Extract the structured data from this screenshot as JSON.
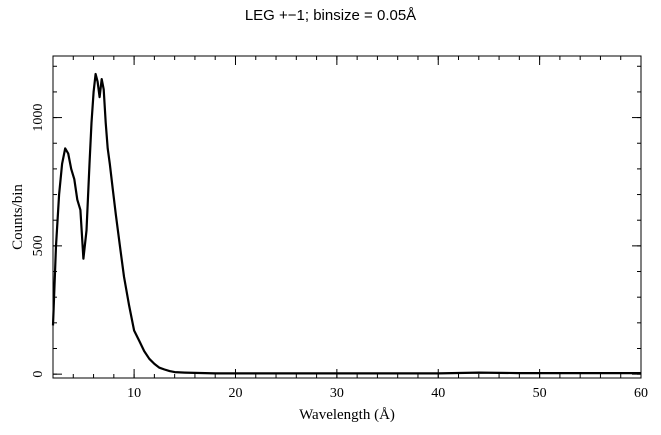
{
  "chart_data": {
    "type": "line",
    "title": "LEG +−1; binsize = 0.05Å",
    "xlabel": "Wavelength (Å)",
    "ylabel": "Counts/bin",
    "xlim": [
      2,
      60
    ],
    "ylim": [
      -15,
      1240
    ],
    "xticks": [
      10,
      20,
      30,
      40,
      50,
      60
    ],
    "yticks": [
      0,
      500,
      1000
    ],
    "grid": false,
    "series": [
      {
        "x": [
          2,
          2.3,
          2.6,
          2.9,
          3.2,
          3.5,
          3.8,
          4.1,
          4.4,
          4.7,
          5.0,
          5.3,
          5.6,
          5.8,
          6.0,
          6.2,
          6.4,
          6.6,
          6.8,
          7.0,
          7.2,
          7.4,
          7.6,
          7.9,
          8.2,
          8.6,
          9.0,
          9.5,
          10,
          10.5,
          11,
          11.5,
          12,
          12.5,
          13,
          13.5,
          14,
          15,
          16,
          17,
          18,
          20,
          25,
          30,
          35,
          40,
          44,
          48,
          52,
          56,
          60
        ],
        "y": [
          190,
          500,
          700,
          820,
          880,
          860,
          800,
          760,
          680,
          640,
          450,
          560,
          820,
          980,
          1100,
          1170,
          1140,
          1080,
          1150,
          1110,
          980,
          880,
          820,
          720,
          620,
          500,
          380,
          270,
          170,
          130,
          90,
          60,
          40,
          25,
          18,
          12,
          8,
          6,
          5,
          4,
          3,
          3,
          3,
          3,
          3,
          3,
          6,
          4,
          4,
          4,
          4
        ]
      }
    ]
  }
}
